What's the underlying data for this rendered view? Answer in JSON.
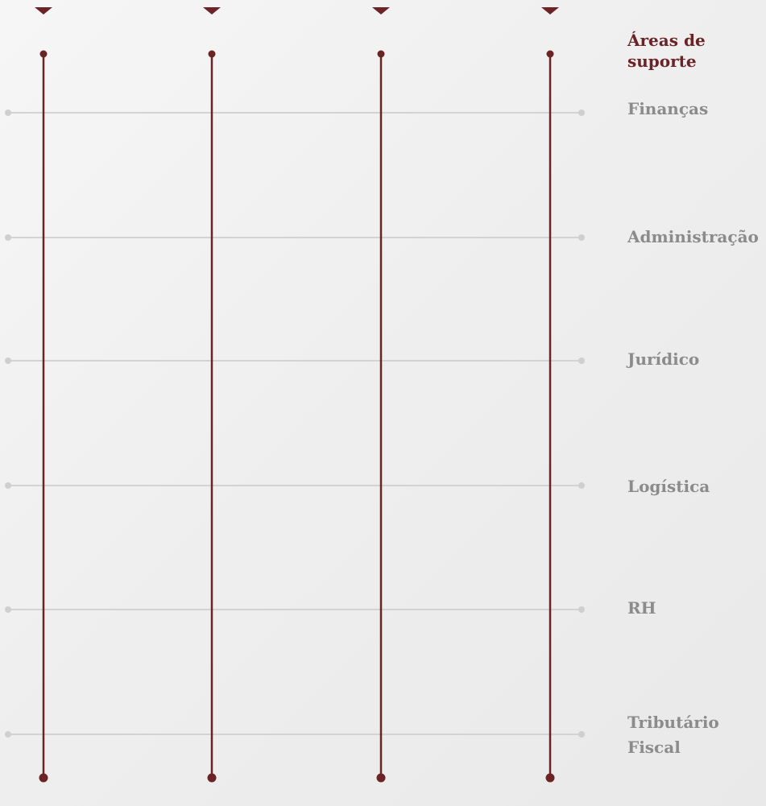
{
  "colors": {
    "accent": "#6b2326",
    "grid_line": "#d3d3d3",
    "grid_dot": "#cfcfcf",
    "label_text": "#8b8b8b",
    "background": "#efefef"
  },
  "header": {
    "title_line1": "Áreas de",
    "title_line2": "suporte"
  },
  "rows": [
    {
      "label": "Finanças"
    },
    {
      "label": "Administração"
    },
    {
      "label": "Jurídico"
    },
    {
      "label": "Logística"
    },
    {
      "label": "RH"
    },
    {
      "label": "Tributário",
      "label2": "Fiscal"
    }
  ],
  "column_count": 4
}
